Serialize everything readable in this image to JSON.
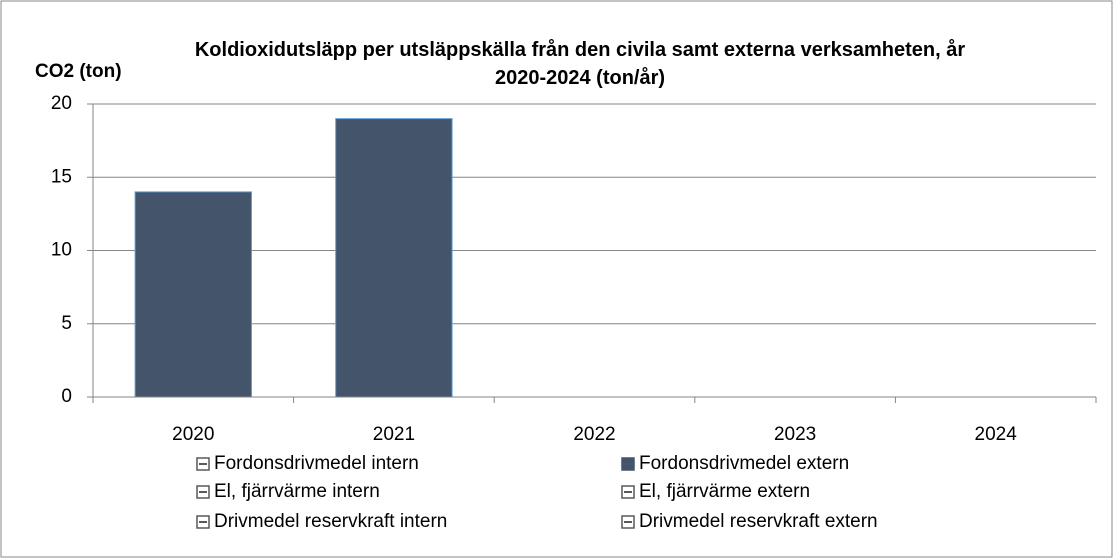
{
  "chart_data": {
    "type": "bar",
    "stacked": true,
    "title": "Koldioxidutsläpp per utsläppskälla från den civila samt externa verksamheten, år 2020-2024 (ton/år)",
    "ylabel": "CO2 (ton)",
    "categories": [
      "2020",
      "2021",
      "2022",
      "2023",
      "2024"
    ],
    "series": [
      {
        "name": "Fordonsdrivmedel intern",
        "color": "#595959",
        "values": [
          0,
          0,
          0,
          0,
          0
        ]
      },
      {
        "name": "Fordonsdrivmedel extern",
        "color": "#44546a",
        "values": [
          14,
          19,
          0,
          0,
          0
        ]
      },
      {
        "name": "El, fjärrvärme intern",
        "color": "#595959",
        "values": [
          0,
          0,
          0,
          0,
          0
        ]
      },
      {
        "name": "El, fjärrvärme extern",
        "color": "#595959",
        "values": [
          0,
          0,
          0,
          0,
          0
        ]
      },
      {
        "name": "Drivmedel reservkraft intern",
        "color": "#595959",
        "values": [
          0,
          0,
          0,
          0,
          0
        ]
      },
      {
        "name": "Drivmedel reservkraft extern",
        "color": "#595959",
        "values": [
          0,
          0,
          0,
          0,
          0
        ]
      }
    ],
    "ylim": [
      0,
      20
    ],
    "yticks": [
      0,
      5,
      10,
      15,
      20
    ],
    "grid": true
  }
}
